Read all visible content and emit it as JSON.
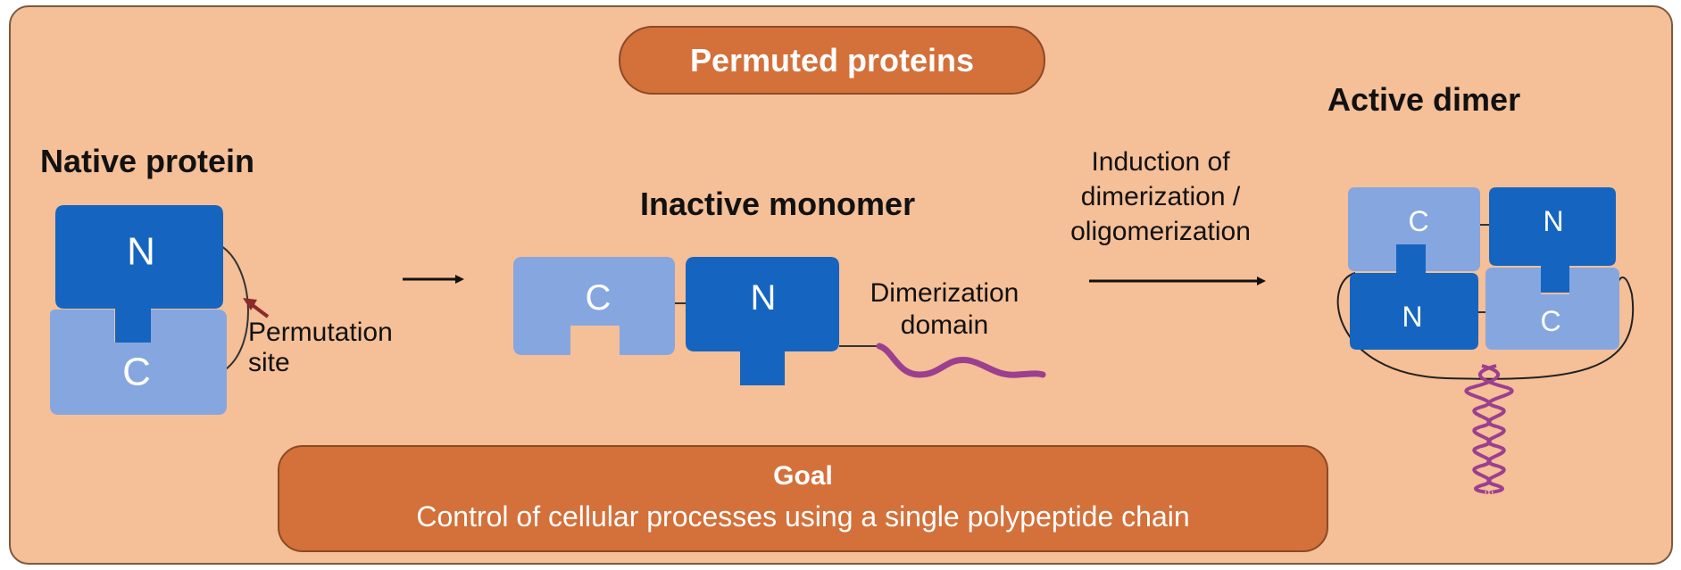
{
  "title": "Permuted proteins",
  "headings": {
    "native": "Native protein",
    "inactive": "Inactive monomer",
    "active": "Active dimer"
  },
  "labels": {
    "permutation_site": [
      "Permutation",
      "site"
    ],
    "dimerization_domain": [
      "Dimerization",
      "domain"
    ],
    "induction": [
      "Induction of",
      "dimerization /",
      "oligomerization"
    ]
  },
  "domains": {
    "n": "N",
    "c": "C"
  },
  "goal": {
    "title": "Goal",
    "text": "Control of cellular processes using a single polypeptide chain"
  },
  "colors": {
    "background": "#f5bf97",
    "pill": "#d4703a",
    "n_domain": "#1565c0",
    "c_domain": "#86a6e0",
    "dimerization_domain": "#9c3f8f",
    "arrow_pointer": "#8a2a2a"
  }
}
